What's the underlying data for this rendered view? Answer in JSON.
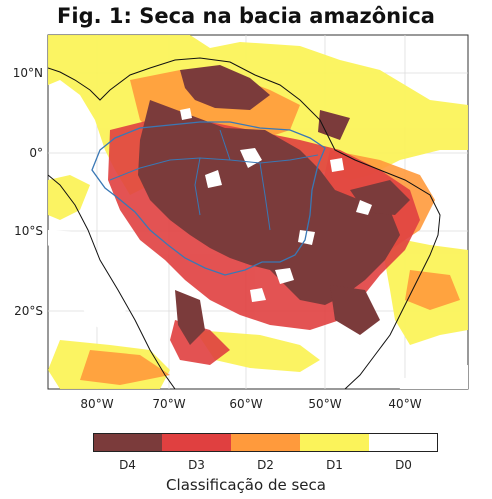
{
  "title": "Fig. 1: Seca na bacia amazônica",
  "lat_labels": [
    "10°N",
    "0°",
    "10°S",
    "20°S"
  ],
  "lon_labels": [
    "80°W",
    "70°W",
    "60°W",
    "50°W",
    "40°W"
  ],
  "legend": {
    "title": "Classificação de seca",
    "categories": [
      {
        "label": "D4",
        "color": "#7b3b3b"
      },
      {
        "label": "D3",
        "color": "#e04040"
      },
      {
        "label": "D2",
        "color": "#ff9a3c"
      },
      {
        "label": "D1",
        "color": "#fbf35a"
      },
      {
        "label": "D0",
        "color": "#ffffff"
      }
    ]
  },
  "colors": {
    "coastline": "#111111",
    "basin_boundary": "#3a78b5",
    "gridline": "#dddddd"
  }
}
